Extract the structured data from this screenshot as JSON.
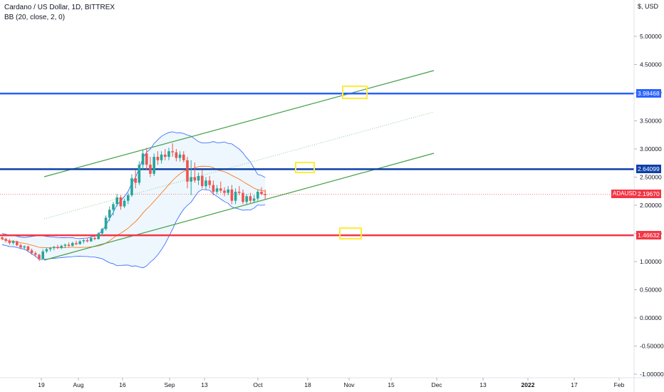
{
  "header": {
    "title": "Cardano / US Dollar, 1D, BITTREX",
    "indicator": "BB (20, close, 2, 0)",
    "currency": "$, USD"
  },
  "chart_data": {
    "type": "candlestick",
    "symbol": "ADAUSD",
    "last_price": "2.19670",
    "y_axis_ticks": [
      "5.00000",
      "4.50000",
      "4.00000",
      "3.50000",
      "3.00000",
      "2.50000",
      "2.00000",
      "1.50000",
      "1.00000",
      "0.50000",
      "0.00000",
      "-0.50000",
      "-1.00000"
    ],
    "y_tick_values": [
      5,
      4.5,
      4,
      3.5,
      3,
      2.5,
      2,
      1.5,
      1,
      0.5,
      0,
      -0.5,
      -1
    ],
    "ylim": [
      -1.1,
      5.5
    ],
    "x_axis_ticks": [
      "19",
      "Aug",
      "16",
      "Sep",
      "13",
      "Oct",
      "18",
      "Nov",
      "15",
      "Dec",
      "13",
      "2022",
      "17",
      "Feb"
    ],
    "horizontal_levels": [
      {
        "label": "3.98468",
        "value": 3.98468,
        "color": "#2962ff"
      },
      {
        "label": "2.64099",
        "value": 2.64099,
        "color": "#0d3fa8"
      },
      {
        "label": "1.46632",
        "value": 1.46632,
        "color": "#f23645"
      }
    ],
    "candles": [
      [
        1.43,
        1.45,
        1.38,
        1.4
      ],
      [
        1.4,
        1.42,
        1.34,
        1.37
      ],
      [
        1.37,
        1.4,
        1.3,
        1.33
      ],
      [
        1.33,
        1.38,
        1.3,
        1.36
      ],
      [
        1.36,
        1.37,
        1.27,
        1.29
      ],
      [
        1.29,
        1.32,
        1.22,
        1.25
      ],
      [
        1.25,
        1.29,
        1.21,
        1.27
      ],
      [
        1.27,
        1.28,
        1.18,
        1.2
      ],
      [
        1.2,
        1.23,
        1.12,
        1.15
      ],
      [
        1.15,
        1.18,
        1.08,
        1.12
      ],
      [
        1.12,
        1.14,
        1.01,
        1.05
      ],
      [
        1.05,
        1.22,
        1.03,
        1.18
      ],
      [
        1.18,
        1.25,
        1.15,
        1.22
      ],
      [
        1.22,
        1.26,
        1.18,
        1.24
      ],
      [
        1.24,
        1.28,
        1.2,
        1.26
      ],
      [
        1.26,
        1.3,
        1.22,
        1.24
      ],
      [
        1.24,
        1.3,
        1.22,
        1.28
      ],
      [
        1.28,
        1.32,
        1.24,
        1.3
      ],
      [
        1.3,
        1.34,
        1.26,
        1.28
      ],
      [
        1.28,
        1.35,
        1.27,
        1.33
      ],
      [
        1.33,
        1.37,
        1.29,
        1.31
      ],
      [
        1.31,
        1.38,
        1.3,
        1.36
      ],
      [
        1.36,
        1.4,
        1.32,
        1.38
      ],
      [
        1.38,
        1.42,
        1.34,
        1.36
      ],
      [
        1.36,
        1.44,
        1.35,
        1.42
      ],
      [
        1.42,
        1.46,
        1.38,
        1.4
      ],
      [
        1.4,
        1.52,
        1.39,
        1.5
      ],
      [
        1.5,
        1.6,
        1.46,
        1.58
      ],
      [
        1.58,
        1.82,
        1.55,
        1.78
      ],
      [
        1.78,
        1.98,
        1.72,
        1.92
      ],
      [
        1.92,
        2.06,
        1.82,
        2.02
      ],
      [
        2.02,
        2.2,
        1.98,
        2.14
      ],
      [
        2.14,
        2.18,
        1.92,
        1.98
      ],
      [
        1.98,
        2.12,
        1.95,
        2.08
      ],
      [
        2.08,
        2.22,
        2.02,
        2.18
      ],
      [
        2.18,
        2.55,
        2.15,
        2.48
      ],
      [
        2.48,
        2.62,
        2.3,
        2.4
      ],
      [
        2.4,
        2.78,
        2.36,
        2.72
      ],
      [
        2.72,
        2.98,
        2.62,
        2.92
      ],
      [
        2.92,
        3.02,
        2.62,
        2.72
      ],
      [
        2.72,
        2.86,
        2.5,
        2.56
      ],
      [
        2.56,
        2.92,
        2.52,
        2.86
      ],
      [
        2.86,
        2.96,
        2.72,
        2.8
      ],
      [
        2.8,
        2.96,
        2.74,
        2.9
      ],
      [
        2.9,
        3.0,
        2.8,
        2.86
      ],
      [
        2.86,
        3.02,
        2.8,
        2.96
      ],
      [
        2.96,
        3.1,
        2.86,
        2.94
      ],
      [
        2.94,
        3.0,
        2.78,
        2.84
      ],
      [
        2.84,
        2.96,
        2.78,
        2.9
      ],
      [
        2.9,
        2.96,
        2.76,
        2.8
      ],
      [
        2.8,
        2.86,
        2.3,
        2.42
      ],
      [
        2.42,
        2.8,
        2.18,
        2.5
      ],
      [
        2.5,
        2.76,
        2.4,
        2.44
      ],
      [
        2.44,
        2.58,
        2.36,
        2.52
      ],
      [
        2.52,
        2.62,
        2.3,
        2.34
      ],
      [
        2.34,
        2.5,
        2.28,
        2.44
      ],
      [
        2.44,
        2.52,
        2.3,
        2.36
      ],
      [
        2.36,
        2.44,
        2.18,
        2.24
      ],
      [
        2.24,
        2.36,
        2.2,
        2.3
      ],
      [
        2.3,
        2.42,
        2.22,
        2.26
      ],
      [
        2.26,
        2.32,
        2.16,
        2.22
      ],
      [
        2.22,
        2.34,
        2.18,
        2.28
      ],
      [
        2.28,
        2.36,
        2.02,
        2.08
      ],
      [
        2.08,
        2.3,
        2.02,
        2.24
      ],
      [
        2.24,
        2.34,
        2.18,
        2.22
      ],
      [
        2.22,
        2.28,
        2.02,
        2.06
      ],
      [
        2.06,
        2.2,
        2.02,
        2.16
      ],
      [
        2.16,
        2.22,
        2.04,
        2.08
      ],
      [
        2.08,
        2.18,
        2.04,
        2.12
      ],
      [
        2.12,
        2.28,
        2.08,
        2.24
      ],
      [
        2.24,
        2.32,
        2.18,
        2.2
      ],
      [
        2.2,
        2.28,
        2.1,
        2.18
      ]
    ]
  }
}
